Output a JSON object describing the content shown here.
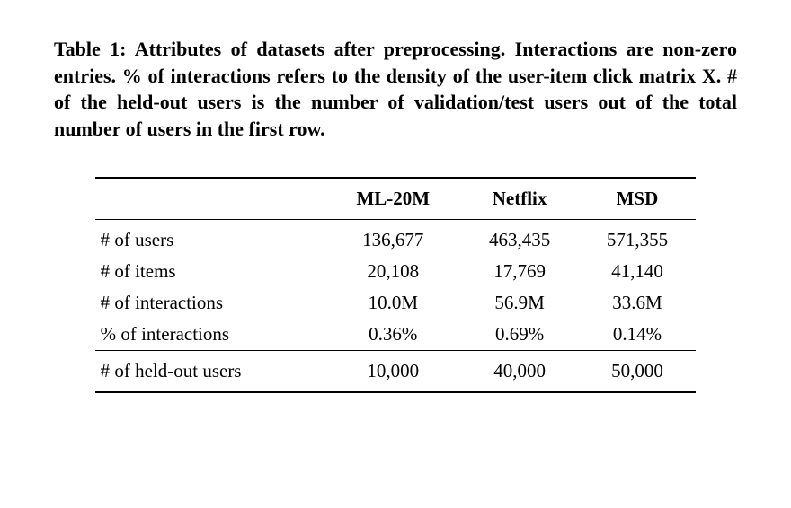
{
  "caption": "Table 1: Attributes of datasets after preprocessing. Interactions are non-zero entries. % of interactions refers to the density of the user-item click matrix X. # of the held-out users is the number of validation/test users out of the total number of users in the first row.",
  "table": {
    "type": "table",
    "columns": [
      "",
      "ML-20M",
      "Netflix",
      "MSD"
    ],
    "rows": [
      {
        "label": "# of users",
        "values": [
          "136,677",
          "463,435",
          "571,355"
        ]
      },
      {
        "label": "# of items",
        "values": [
          "20,108",
          "17,769",
          "41,140"
        ]
      },
      {
        "label": "# of interactions",
        "values": [
          "10.0M",
          "56.9M",
          "33.6M"
        ]
      },
      {
        "label": "% of interactions",
        "values": [
          "0.36%",
          "0.69%",
          "0.14%"
        ]
      }
    ],
    "sep_row": {
      "label": "# of held-out users",
      "values": [
        "10,000",
        "40,000",
        "50,000"
      ]
    },
    "rule_color": "#000000",
    "background_color": "#ffffff",
    "font_family": "Times New Roman",
    "header_fontweight": 700,
    "body_fontsize": 21,
    "caption_fontsize": 22
  }
}
